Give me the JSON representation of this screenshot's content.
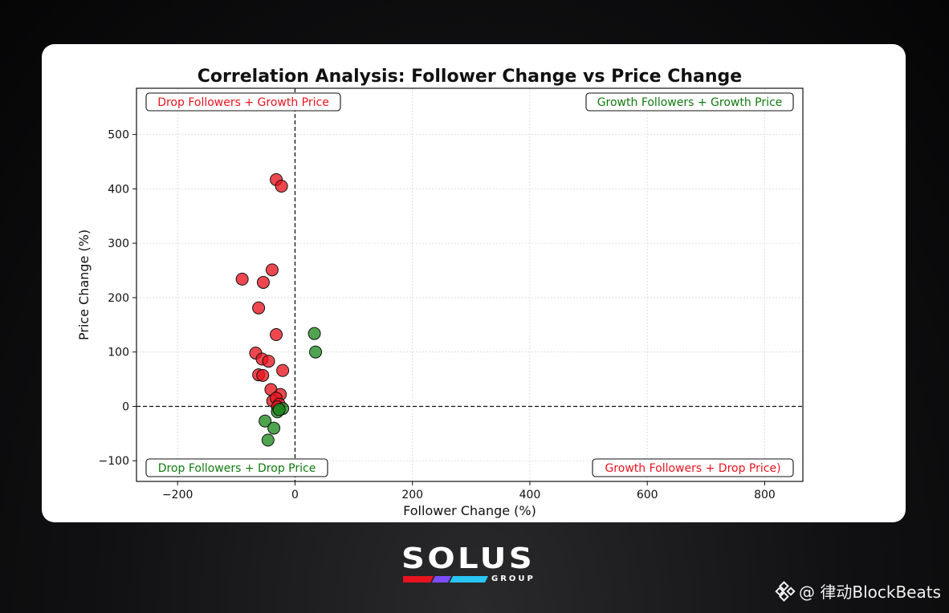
{
  "chart_data": {
    "type": "scatter",
    "title": "Correlation Analysis: Follower Change vs Price Change",
    "xlabel": "Follower Change (%)",
    "ylabel": "Price Change (%)",
    "xlim": [
      -270,
      865
    ],
    "ylim": [
      -138,
      585
    ],
    "xticks": [
      -200,
      0,
      200,
      400,
      600,
      800
    ],
    "yticks": [
      -100,
      0,
      100,
      200,
      300,
      400,
      500
    ],
    "xtick_labels": [
      "−200",
      "0",
      "200",
      "400",
      "600",
      "800"
    ],
    "ytick_labels": [
      "−100",
      "0",
      "100",
      "200",
      "300",
      "400",
      "500"
    ],
    "grid": true,
    "reference_lines": {
      "x": 0,
      "y": 0
    },
    "colors": {
      "drop_growth": "#e8141f",
      "growth": "#0f7a0f",
      "point_red": "#e8141f",
      "point_green": "#1f8a1f"
    },
    "quadrant_labels": [
      {
        "text": "Drop Followers + Growth Price",
        "position": "top-left",
        "color": "#e8141f"
      },
      {
        "text": "Growth Followers + Growth Price",
        "position": "top-right",
        "color": "#0f7a0f"
      },
      {
        "text": "Drop Followers + Drop Price",
        "position": "bottom-left",
        "color": "#0f7a0f"
      },
      {
        "text": "Growth Followers + Drop Price)",
        "position": "bottom-right",
        "color": "#e8141f"
      }
    ],
    "series": [
      {
        "color": "red",
        "points": [
          [
            -32,
            417
          ],
          [
            -23,
            405
          ],
          [
            -90,
            234
          ],
          [
            -39,
            251
          ],
          [
            -54,
            228
          ],
          [
            -62,
            181
          ],
          [
            -32,
            132
          ],
          [
            -67,
            98
          ],
          [
            -56,
            87
          ],
          [
            -45,
            83
          ],
          [
            -21,
            66
          ],
          [
            -62,
            58
          ],
          [
            -55,
            57
          ],
          [
            -41,
            31
          ],
          [
            -25,
            22
          ],
          [
            -38,
            10
          ],
          [
            -32,
            15
          ],
          [
            -27,
            4
          ],
          [
            -30,
            -1
          ]
        ]
      },
      {
        "color": "green",
        "points": [
          [
            33,
            134
          ],
          [
            35,
            100
          ],
          [
            -21,
            -4
          ],
          [
            -30,
            -10
          ],
          [
            -27,
            -6
          ],
          [
            -51,
            -27
          ],
          [
            -36,
            -40
          ],
          [
            -46,
            -62
          ]
        ]
      }
    ]
  },
  "branding": {
    "logo_word": "SOLUS",
    "logo_sub": "GROUP",
    "watermark": "@ 律动BlockBeats"
  }
}
